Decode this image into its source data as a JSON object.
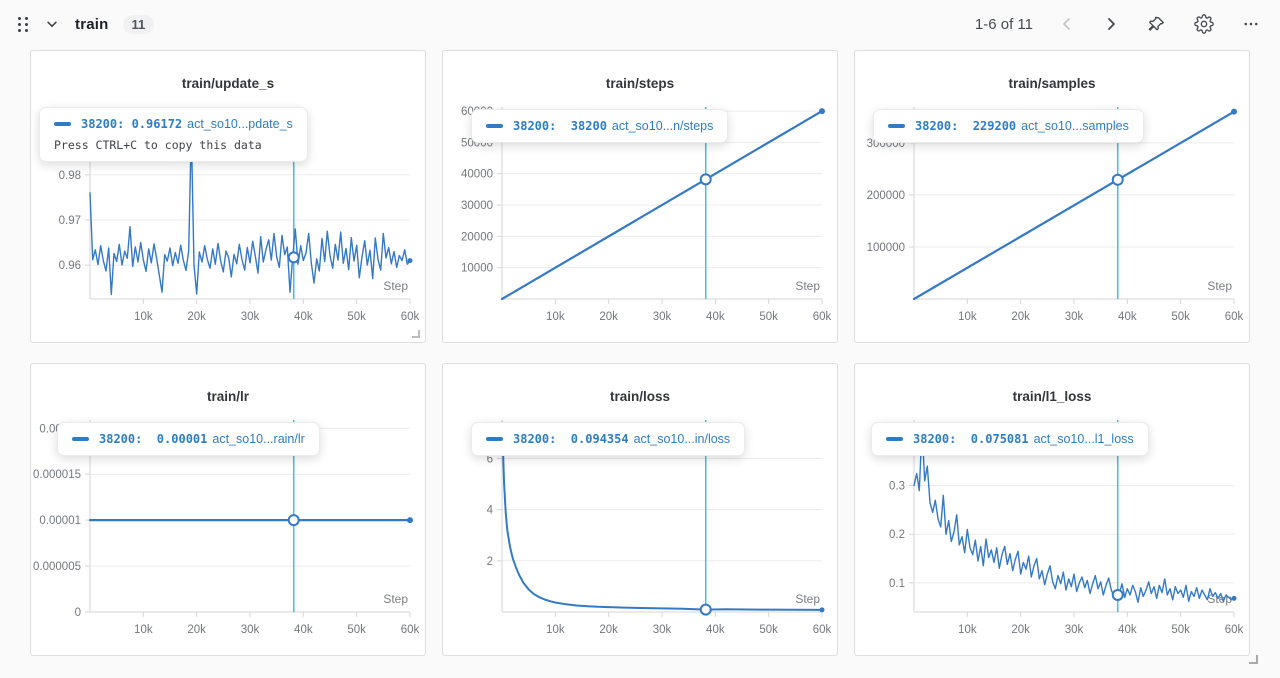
{
  "header": {
    "title": "train",
    "badge": "11",
    "pagination": "1-6 of 11"
  },
  "colors": {
    "line": "#3479c6",
    "cursor": "#34c6e0",
    "grid": "#ececec",
    "axis": "#d6d6d6",
    "tick_text": "#73777d",
    "tooltip_accent": "#2d7dc5"
  },
  "charts": [
    {
      "title": "train/update_s",
      "tooltip": {
        "value": "38200: 0.96172",
        "run": "act_so10...pdate_s",
        "hint": "Press CTRL+C to copy this data"
      }
    },
    {
      "title": "train/steps",
      "tooltip": {
        "value": "38200:  38200",
        "run": "act_so10...n/steps"
      }
    },
    {
      "title": "train/samples",
      "tooltip": {
        "value": "38200:  229200",
        "run": "act_so10...samples"
      }
    },
    {
      "title": "train/lr",
      "tooltip": {
        "value": "38200:  0.00001",
        "run": "act_so10...rain/lr"
      }
    },
    {
      "title": "train/loss",
      "tooltip": {
        "value": "38200:  0.094354",
        "run": "act_so10...in/loss"
      }
    },
    {
      "title": "train/l1_loss",
      "tooltip": {
        "value": "38200:  0.075081",
        "run": "act_so10...l1_loss"
      }
    }
  ],
  "chart_data": [
    {
      "type": "line",
      "title": "train/update_s",
      "xlabel": "Step",
      "x_range": [
        0,
        60000
      ],
      "y_range": [
        0.9525,
        0.995
      ],
      "x_ticks": [
        [
          10000,
          "10k"
        ],
        [
          20000,
          "20k"
        ],
        [
          30000,
          "30k"
        ],
        [
          40000,
          "40k"
        ],
        [
          50000,
          "50k"
        ],
        [
          60000,
          "60k"
        ]
      ],
      "y_ticks": [
        [
          0.96,
          "0.96"
        ],
        [
          0.97,
          "0.97"
        ],
        [
          0.98,
          "0.98"
        ]
      ],
      "cursor_x": 38200,
      "marker": [
        38200,
        0.96172
      ],
      "stroke_w": 1.4,
      "end_r": 2.5,
      "series": [
        {
          "name": "act_so10...pdate_s",
          "values": [
            0.976,
            0.9612,
            0.9634,
            0.9601,
            0.9643,
            0.961,
            0.9587,
            0.9638,
            0.9535,
            0.9626,
            0.9608,
            0.9646,
            0.96,
            0.9631,
            0.9615,
            0.9685,
            0.9597,
            0.964,
            0.9607,
            0.965,
            0.9612,
            0.9586,
            0.9636,
            0.9605,
            0.9647,
            0.9614,
            0.9578,
            0.954,
            0.9623,
            0.9609,
            0.9638,
            0.9599,
            0.9628,
            0.9604,
            0.9644,
            0.9611,
            0.9588,
            0.9632,
            0.99,
            0.96,
            0.9536,
            0.9629,
            0.9607,
            0.9643,
            0.9613,
            0.9593,
            0.9636,
            0.9602,
            0.9648,
            0.9609,
            0.9585,
            0.9631,
            0.9616,
            0.9574,
            0.9624,
            0.9603,
            0.9646,
            0.9612,
            0.9589,
            0.9639,
            0.9605,
            0.9653,
            0.962,
            0.9582,
            0.9663,
            0.9607,
            0.9635,
            0.9656,
            0.9611,
            0.967,
            0.9618,
            0.9595,
            0.9666,
            0.9623,
            0.964,
            0.954,
            0.9617,
            0.968,
            0.9602,
            0.9643,
            0.961,
            0.9627,
            0.967,
            0.9605,
            0.956,
            0.9614,
            0.9587,
            0.9659,
            0.9608,
            0.9675,
            0.9621,
            0.9593,
            0.9646,
            0.9611,
            0.9673,
            0.9604,
            0.9637,
            0.959,
            0.9661,
            0.9609,
            0.9644,
            0.9572,
            0.9618,
            0.9654,
            0.96,
            0.9633,
            0.957,
            0.966,
            0.9613,
            0.9589,
            0.967,
            0.9616,
            0.9639,
            0.9603,
            0.963,
            0.9595,
            0.9621,
            0.961,
            0.9634,
            0.9602,
            0.961
          ]
        }
      ]
    },
    {
      "type": "line",
      "title": "train/steps",
      "xlabel": "Step",
      "x_range": [
        0,
        60000
      ],
      "y_range": [
        0,
        61300
      ],
      "x_ticks": [
        [
          10000,
          "10k"
        ],
        [
          20000,
          "20k"
        ],
        [
          30000,
          "30k"
        ],
        [
          40000,
          "40k"
        ],
        [
          50000,
          "50k"
        ],
        [
          60000,
          "60k"
        ]
      ],
      "y_ticks": [
        [
          10000,
          "10000"
        ],
        [
          20000,
          "20000"
        ],
        [
          30000,
          "30000"
        ],
        [
          40000,
          "40000"
        ],
        [
          50000,
          "50000"
        ],
        [
          60000,
          "60000"
        ]
      ],
      "cursor_x": 38200,
      "marker": [
        38200,
        38200
      ],
      "stroke_w": 2.2,
      "end_r": 3,
      "series": [
        {
          "name": "act_so10...n/steps",
          "points": [
            [
              0,
              0
            ],
            [
              60000,
              60000
            ]
          ]
        }
      ]
    },
    {
      "type": "line",
      "title": "train/samples",
      "xlabel": "Step",
      "x_range": [
        0,
        60000
      ],
      "y_range": [
        0,
        369000
      ],
      "x_ticks": [
        [
          10000,
          "10k"
        ],
        [
          20000,
          "20k"
        ],
        [
          30000,
          "30k"
        ],
        [
          40000,
          "40k"
        ],
        [
          50000,
          "50k"
        ],
        [
          60000,
          "60k"
        ]
      ],
      "y_ticks": [
        [
          100000,
          "100000"
        ],
        [
          200000,
          "200000"
        ],
        [
          300000,
          "300000"
        ]
      ],
      "cursor_x": 38200,
      "marker": [
        38200,
        229200
      ],
      "stroke_w": 2.2,
      "end_r": 3,
      "series": [
        {
          "name": "act_so10...samples",
          "points": [
            [
              0,
              0
            ],
            [
              60000,
              360000
            ]
          ]
        }
      ]
    },
    {
      "type": "line",
      "title": "train/lr",
      "xlabel": "Step",
      "x_range": [
        0,
        60000
      ],
      "y_range": [
        0,
        2.09e-05
      ],
      "x_ticks": [
        [
          10000,
          "10k"
        ],
        [
          20000,
          "20k"
        ],
        [
          30000,
          "30k"
        ],
        [
          40000,
          "40k"
        ],
        [
          50000,
          "50k"
        ],
        [
          60000,
          "60k"
        ]
      ],
      "y_ticks": [
        [
          0,
          "0"
        ],
        [
          5e-06,
          "0.000005"
        ],
        [
          1e-05,
          "0.00001"
        ],
        [
          1.5e-05,
          "0.000015"
        ],
        [
          2e-05,
          "0.00002"
        ]
      ],
      "cursor_x": 38200,
      "marker": [
        38200,
        1e-05
      ],
      "stroke_w": 2.2,
      "end_r": 3,
      "series": [
        {
          "name": "act_so10...rain/lr",
          "points": [
            [
              0,
              1e-05
            ],
            [
              60000,
              1e-05
            ]
          ]
        }
      ]
    },
    {
      "type": "line",
      "title": "train/loss",
      "xlabel": "Step",
      "x_range": [
        0,
        60000
      ],
      "y_range": [
        0,
        7.5
      ],
      "x_ticks": [
        [
          10000,
          "10k"
        ],
        [
          20000,
          "20k"
        ],
        [
          30000,
          "30k"
        ],
        [
          40000,
          "40k"
        ],
        [
          50000,
          "50k"
        ],
        [
          60000,
          "60k"
        ]
      ],
      "y_ticks": [
        [
          2,
          "2"
        ],
        [
          4,
          "4"
        ],
        [
          6,
          "6"
        ]
      ],
      "cursor_x": 38200,
      "marker": [
        38200,
        0.094354
      ],
      "stroke_w": 2,
      "end_r": 2.5,
      "series": [
        {
          "name": "act_so10...in/loss",
          "points": [
            [
              50,
              7.4
            ],
            [
              200,
              6.2
            ],
            [
              400,
              5.0
            ],
            [
              700,
              3.9
            ],
            [
              1000,
              3.2
            ],
            [
              1500,
              2.55
            ],
            [
              2000,
              2.1
            ],
            [
              2600,
              1.75
            ],
            [
              3200,
              1.45
            ],
            [
              4000,
              1.15
            ],
            [
              5000,
              0.88
            ],
            [
              6000,
              0.7
            ],
            [
              7000,
              0.58
            ],
            [
              8000,
              0.49
            ],
            [
              9000,
              0.42
            ],
            [
              10000,
              0.37
            ],
            [
              12000,
              0.3
            ],
            [
              14000,
              0.255
            ],
            [
              16000,
              0.225
            ],
            [
              18000,
              0.205
            ],
            [
              20000,
              0.19
            ],
            [
              23000,
              0.17
            ],
            [
              26000,
              0.155
            ],
            [
              30000,
              0.14
            ],
            [
              34000,
              0.125
            ],
            [
              38200,
              0.094354
            ],
            [
              42000,
              0.105
            ],
            [
              46000,
              0.098
            ],
            [
              50000,
              0.092
            ],
            [
              55000,
              0.086
            ],
            [
              60000,
              0.082
            ]
          ]
        }
      ]
    },
    {
      "type": "line",
      "title": "train/l1_loss",
      "xlabel": "Step",
      "x_range": [
        0,
        60000
      ],
      "y_range": [
        0.04,
        0.435
      ],
      "x_ticks": [
        [
          10000,
          "10k"
        ],
        [
          20000,
          "20k"
        ],
        [
          30000,
          "30k"
        ],
        [
          40000,
          "40k"
        ],
        [
          50000,
          "50k"
        ],
        [
          60000,
          "60k"
        ]
      ],
      "y_ticks": [
        [
          0.1,
          "0.1"
        ],
        [
          0.2,
          "0.2"
        ],
        [
          0.3,
          "0.3"
        ]
      ],
      "cursor_x": 38200,
      "marker": [
        38200,
        0.075081
      ],
      "stroke_w": 1.4,
      "end_r": 2.5,
      "series": [
        {
          "name": "act_so10...l1_loss",
          "values": [
            0.3,
            0.325,
            0.29,
            0.42,
            0.31,
            0.34,
            0.265,
            0.245,
            0.27,
            0.232,
            0.215,
            0.28,
            0.2,
            0.228,
            0.185,
            0.205,
            0.24,
            0.178,
            0.195,
            0.162,
            0.21,
            0.172,
            0.158,
            0.188,
            0.145,
            0.175,
            0.135,
            0.19,
            0.152,
            0.168,
            0.142,
            0.172,
            0.13,
            0.158,
            0.175,
            0.138,
            0.16,
            0.125,
            0.148,
            0.165,
            0.118,
            0.142,
            0.128,
            0.155,
            0.112,
            0.135,
            0.15,
            0.108,
            0.125,
            0.096,
            0.118,
            0.135,
            0.102,
            0.088,
            0.115,
            0.098,
            0.122,
            0.085,
            0.108,
            0.092,
            0.118,
            0.082,
            0.1,
            0.112,
            0.09,
            0.105,
            0.078,
            0.098,
            0.115,
            0.088,
            0.102,
            0.075,
            0.095,
            0.11,
            0.085,
            0.072,
            0.076,
            0.078,
            0.098,
            0.07,
            0.088,
            0.075,
            0.095,
            0.082,
            0.06,
            0.09,
            0.072,
            0.085,
            0.102,
            0.078,
            0.092,
            0.068,
            0.095,
            0.08,
            0.108,
            0.075,
            0.088,
            0.065,
            0.092,
            0.078,
            0.085,
            0.07,
            0.095,
            0.062,
            0.082,
            0.072,
            0.09,
            0.068,
            0.085,
            0.075,
            0.065,
            0.088,
            0.072,
            0.08,
            0.068,
            0.078,
            0.062,
            0.075,
            0.07,
            0.065,
            0.068
          ]
        }
      ]
    }
  ]
}
